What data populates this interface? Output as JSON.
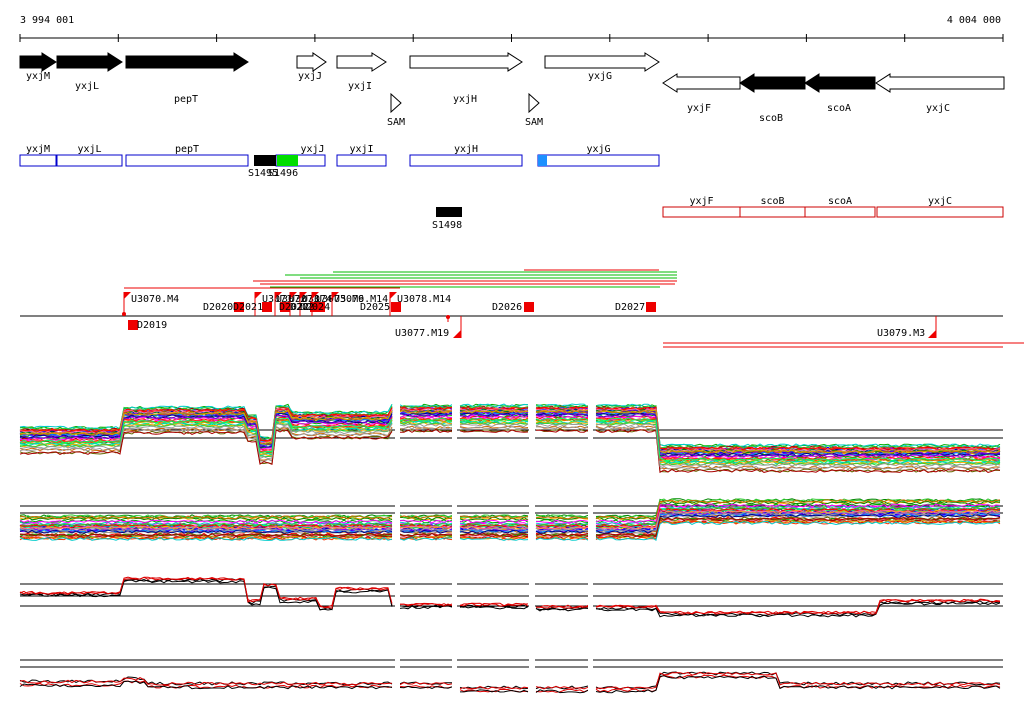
{
  "ruler": {
    "start_label": "3 994 001",
    "end_label": "4 004 000"
  },
  "colors": {
    "plus_gene_fill": "#000000",
    "open_gene_fill": "#ffffff",
    "blue_box": "#0000cc",
    "red_box": "#cc0000",
    "green_block": "#00dd00",
    "cyan_block": "#1e90ff",
    "marker_red": "#ee0000",
    "profile_black": "#000000",
    "profile_red": "#dd0000"
  },
  "genes_top": [
    {
      "name": "yxjM",
      "strand": "+",
      "filled": true
    },
    {
      "name": "yxjL",
      "strand": "+",
      "filled": true
    },
    {
      "name": "pepT",
      "strand": "+",
      "filled": true
    },
    {
      "name": "yxjJ",
      "strand": "+",
      "filled": false
    },
    {
      "name": "yxjI",
      "strand": "+",
      "filled": false
    },
    {
      "name": "yxjH",
      "strand": "+",
      "filled": false
    },
    {
      "name": "yxjG",
      "strand": "+",
      "filled": false
    },
    {
      "name": "yxjF",
      "strand": "-",
      "filled": false
    },
    {
      "name": "scoB",
      "strand": "-",
      "filled": true
    },
    {
      "name": "scoA",
      "strand": "-",
      "filled": true
    },
    {
      "name": "yxjC",
      "strand": "-",
      "filled": false
    }
  ],
  "sam_elements": [
    "SAM",
    "SAM"
  ],
  "transcripts_blue": [
    "yxjM",
    "yxjL",
    "pepT",
    "yxjJ",
    "yxjI",
    "yxjH",
    "yxjG"
  ],
  "transcripts_red": [
    "yxjF",
    "scoB",
    "scoA",
    "yxjC"
  ],
  "segments": [
    "S1495",
    "S1496",
    "S1498"
  ],
  "upstream_markers": [
    "U3070.M4",
    "U3071",
    "U3072",
    "U3073",
    "U3074",
    "U3075.M9",
    "U3076.M14",
    "U3078.M14"
  ],
  "downstream_markers": [
    "D2019",
    "D2020",
    "D2021",
    "D2022",
    "D2023",
    "D2024",
    "D2025",
    "D2026",
    "D2027"
  ],
  "lower_markers": [
    "U3077.M19",
    "U3079.M3"
  ]
}
